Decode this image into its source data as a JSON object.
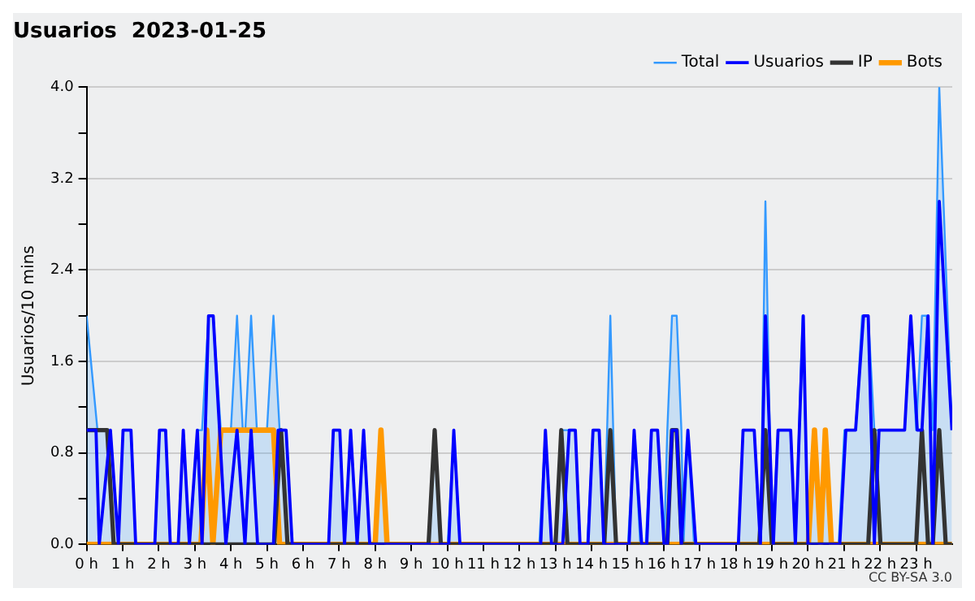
{
  "chart_data": {
    "type": "line",
    "title": "Usuarios  2023-01-25",
    "ylabel": "Usuarios/10 mins",
    "xlim": [
      0,
      24
    ],
    "xticks": [
      {
        "value": 0,
        "label": "0 h"
      },
      {
        "value": 1,
        "label": "1 h"
      },
      {
        "value": 2,
        "label": "2 h"
      },
      {
        "value": 3,
        "label": "3 h"
      },
      {
        "value": 4,
        "label": "4 h"
      },
      {
        "value": 5,
        "label": "5 h"
      },
      {
        "value": 6,
        "label": "6 h"
      },
      {
        "value": 7,
        "label": "7 h"
      },
      {
        "value": 8,
        "label": "8 h"
      },
      {
        "value": 9,
        "label": "9 h"
      },
      {
        "value": 10,
        "label": "10 h"
      },
      {
        "value": 11,
        "label": "11 h"
      },
      {
        "value": 12,
        "label": "12 h"
      },
      {
        "value": 13,
        "label": "13 h"
      },
      {
        "value": 14,
        "label": "14 h"
      },
      {
        "value": 15,
        "label": "15 h"
      },
      {
        "value": 16,
        "label": "16 h"
      },
      {
        "value": 17,
        "label": "17 h"
      },
      {
        "value": 18,
        "label": "18 h"
      },
      {
        "value": 19,
        "label": "19 h"
      },
      {
        "value": 20,
        "label": "20 h"
      },
      {
        "value": 21,
        "label": "21 h"
      },
      {
        "value": 22,
        "label": "22 h"
      },
      {
        "value": 23,
        "label": "23 h"
      }
    ],
    "ylim": [
      0,
      4
    ],
    "yticks": [
      {
        "value": 0,
        "label": "0.0"
      },
      {
        "value": 0.4,
        "label": null
      },
      {
        "value": 0.8,
        "label": "0.8"
      },
      {
        "value": 1.2,
        "label": null
      },
      {
        "value": 1.6,
        "label": "1.6"
      },
      {
        "value": 2.0,
        "label": null
      },
      {
        "value": 2.4,
        "label": "2.4"
      },
      {
        "value": 2.8,
        "label": null
      },
      {
        "value": 3.2,
        "label": "3.2"
      },
      {
        "value": 3.6,
        "label": null
      },
      {
        "value": 4.0,
        "label": "4.0"
      }
    ],
    "grid": "y",
    "legend": "top right",
    "marker": "none",
    "line_style": "solid",
    "annotations": [
      "CC BY-SA 3.0"
    ],
    "series": [
      {
        "name": "Total",
        "type": "area",
        "color": "#3399ff",
        "x": [
          0,
          0.3,
          0.66,
          0.88,
          1.01,
          1.23,
          1.36,
          1.89,
          2.02,
          2.19,
          2.32,
          2.54,
          2.68,
          2.85,
          3.07,
          3.2,
          3.38,
          3.51,
          3.72,
          4.0,
          4.17,
          4.33,
          4.4,
          4.56,
          4.72,
          5.0,
          5.18,
          5.35,
          5.53,
          5.7,
          6.71,
          6.84,
          7.02,
          7.15,
          7.32,
          7.5,
          7.68,
          7.85,
          8.0,
          8.16,
          8.33,
          9.48,
          9.65,
          9.82,
          10.01,
          10.18,
          10.35,
          12.55,
          12.72,
          12.89,
          13.0,
          13.16,
          13.38,
          13.55,
          13.68,
          13.88,
          14.04,
          14.21,
          14.34,
          14.52,
          14.68,
          15.01,
          15.18,
          15.35,
          15.5,
          15.66,
          15.83,
          16.01,
          16.1,
          16.23,
          16.36,
          16.49,
          16.55,
          16.67,
          16.84,
          18.07,
          18.2,
          18.51,
          18.68,
          18.82,
          19.0,
          19.17,
          19.52,
          19.65,
          19.85,
          20.01,
          20.18,
          20.35,
          20.48,
          20.65,
          20.85,
          21.01,
          21.32,
          21.5,
          21.67,
          21.84,
          22.68,
          22.85,
          23.0,
          23.16,
          23.29,
          23.46,
          23.64,
          23.99
        ],
        "values": [
          2,
          1,
          1,
          0,
          1,
          1,
          0,
          0,
          1,
          1,
          0,
          0,
          1,
          0,
          1,
          1,
          2,
          2,
          1,
          1,
          2,
          1,
          1,
          2,
          1,
          1,
          2,
          1,
          1,
          0,
          0,
          1,
          1,
          0,
          1,
          0,
          1,
          0,
          0,
          1,
          0,
          0,
          1,
          0,
          0,
          1,
          0,
          0,
          1,
          0,
          0,
          1,
          1,
          1,
          0,
          0,
          1,
          1,
          0,
          2,
          0,
          0,
          1,
          0,
          0,
          1,
          1,
          0,
          1,
          2,
          2,
          1,
          0,
          1,
          0,
          0,
          1,
          1,
          0,
          3,
          0,
          1,
          1,
          0,
          2,
          0,
          1,
          0,
          1,
          0,
          0,
          1,
          1,
          2,
          2,
          1,
          1,
          2,
          1,
          2,
          2,
          1,
          4,
          1
        ]
      },
      {
        "name": "Usuarios",
        "color": "#0000ff",
        "x": [
          0,
          0.26,
          0.35,
          0.66,
          0.88,
          1.01,
          1.23,
          1.36,
          1.89,
          2.02,
          2.19,
          2.32,
          2.54,
          2.68,
          2.85,
          3.07,
          3.2,
          3.38,
          3.51,
          3.86,
          4.17,
          4.39,
          4.56,
          4.74,
          5.18,
          5.31,
          5.53,
          5.7,
          6.71,
          6.84,
          7.02,
          7.15,
          7.32,
          7.5,
          7.68,
          7.85,
          10.04,
          10.18,
          10.35,
          12.59,
          12.72,
          12.89,
          13.2,
          13.38,
          13.55,
          13.68,
          13.9,
          14.04,
          14.21,
          14.34,
          15.04,
          15.18,
          15.39,
          15.53,
          15.66,
          15.83,
          16.01,
          16.1,
          16.23,
          16.36,
          16.49,
          16.67,
          16.89,
          18.07,
          18.2,
          18.51,
          18.68,
          18.82,
          19.04,
          19.17,
          19.52,
          19.65,
          19.87,
          20.0,
          20.88,
          21.05,
          21.32,
          21.54,
          21.67,
          21.84,
          21.97,
          22.68,
          22.85,
          23.03,
          23.16,
          23.33,
          23.46,
          23.64,
          23.99
        ],
        "values": [
          1,
          1,
          0,
          1,
          0,
          1,
          1,
          0,
          0,
          1,
          1,
          0,
          0,
          1,
          0,
          1,
          0,
          2,
          2,
          0,
          1,
          0,
          1,
          0,
          0,
          1,
          1,
          0,
          0,
          1,
          1,
          0,
          1,
          0,
          1,
          0,
          0,
          1,
          0,
          0,
          1,
          0,
          0,
          1,
          1,
          0,
          0,
          1,
          1,
          0,
          0,
          1,
          0,
          0,
          1,
          1,
          0,
          0,
          1,
          1,
          0,
          1,
          0,
          0,
          1,
          1,
          0,
          2,
          0,
          1,
          1,
          0,
          2,
          0,
          0,
          1,
          1,
          2,
          2,
          0,
          1,
          1,
          2,
          1,
          1,
          2,
          0,
          3,
          1
        ]
      },
      {
        "name": "IP",
        "color": "#333333",
        "x": [
          0,
          0.57,
          0.75,
          5.2,
          5.39,
          5.57,
          9.48,
          9.65,
          9.82,
          13.0,
          13.16,
          13.33,
          14.35,
          14.52,
          14.68,
          16.1,
          16.23,
          16.36,
          16.5,
          18.65,
          18.82,
          19.0,
          21.67,
          21.84,
          22.01,
          23.0,
          23.16,
          23.33,
          23.46,
          23.64,
          23.82,
          23.99
        ],
        "values": [
          1,
          1,
          0,
          0,
          1,
          0,
          0,
          1,
          0,
          0,
          1,
          0,
          0,
          1,
          0,
          0,
          1,
          1,
          0,
          0,
          1,
          0,
          0,
          1,
          0,
          0,
          1,
          0,
          0,
          1,
          0,
          0
        ]
      },
      {
        "name": "Bots",
        "color": "#ff9900",
        "x": [
          0,
          3.17,
          3.33,
          3.5,
          3.72,
          5.18,
          5.35,
          8.0,
          8.16,
          8.33,
          20.01,
          20.18,
          20.35,
          20.48,
          20.65,
          23.99
        ],
        "values": [
          0,
          0,
          1,
          0,
          1,
          1,
          0,
          0,
          1,
          0,
          0,
          1,
          0,
          1,
          0,
          0
        ]
      }
    ]
  }
}
